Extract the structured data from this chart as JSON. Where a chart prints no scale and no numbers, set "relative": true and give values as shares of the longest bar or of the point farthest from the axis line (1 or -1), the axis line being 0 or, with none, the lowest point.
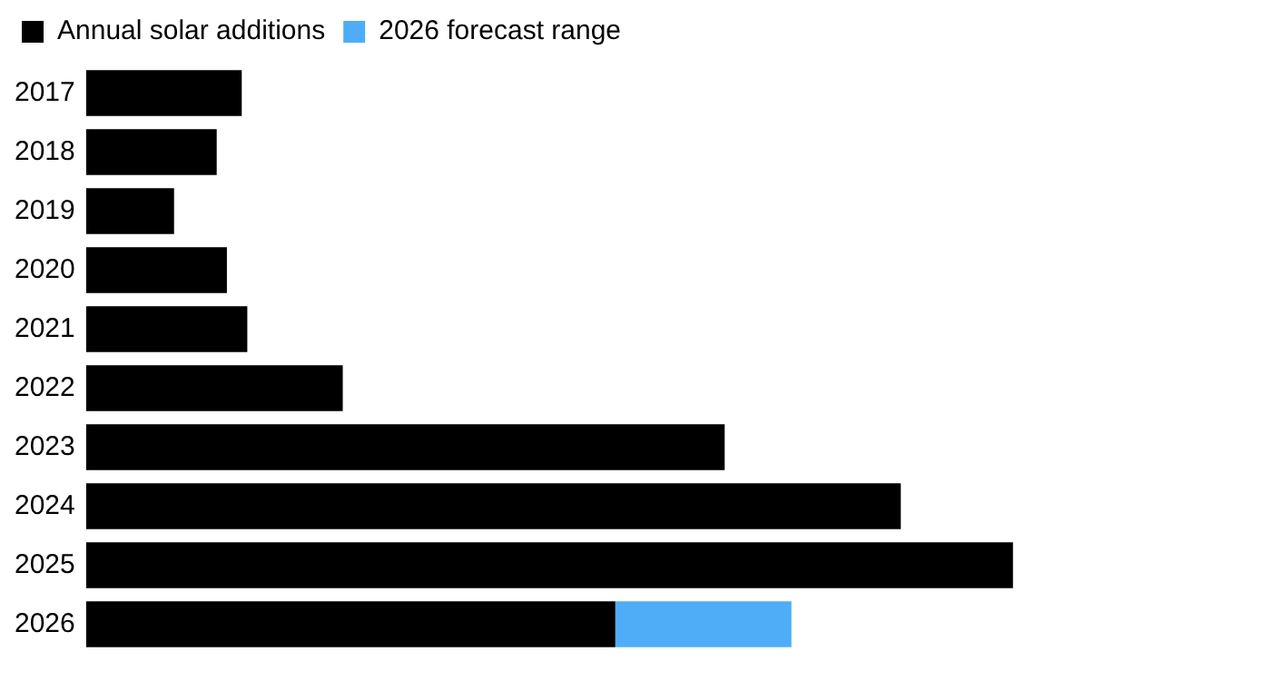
{
  "chart_data": {
    "type": "bar",
    "orientation": "horizontal",
    "stacked": true,
    "relative": true,
    "legend": "top left",
    "categories": [
      "2017",
      "2018",
      "2019",
      "2020",
      "2021",
      "2022",
      "2023",
      "2024",
      "2025",
      "2026"
    ],
    "series": [
      {
        "name": "Annual solar additions",
        "color": "#000000",
        "values": [
          0.168,
          0.141,
          0.095,
          0.152,
          0.174,
          0.277,
          0.689,
          0.879,
          1,
          0.571
        ]
      },
      {
        "name": "2026 forecast range",
        "color": "#4fadf7",
        "values": [
          null,
          null,
          null,
          null,
          null,
          null,
          null,
          null,
          null,
          0.19
        ]
      }
    ]
  }
}
